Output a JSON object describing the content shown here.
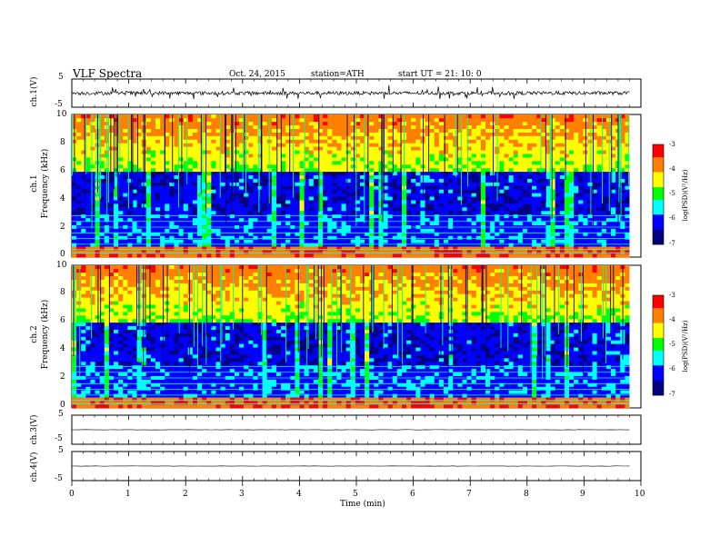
{
  "header": {
    "title": "VLF  Spectra",
    "date": "Oct. 24, 2015",
    "station": "station=ATH",
    "start": "start  UT  =    21: 10: 0"
  },
  "chart_data": [
    {
      "type": "line",
      "name_label": "ch.1(V)",
      "ylim": [
        -5,
        5
      ],
      "yticks": [
        "5",
        "-5"
      ],
      "description_values": {
        "baseline": 0.0,
        "typical_amplitude": 0.8,
        "spike_max": 2.5
      }
    },
    {
      "type": "heatmap",
      "ylabel_channel": "ch.1",
      "ylabel": "Frequency  (kHz)",
      "ylim": [
        0,
        10
      ],
      "yticks": [
        "0",
        "2",
        "4",
        "6",
        "8",
        "10"
      ],
      "xlim": [
        0,
        10
      ],
      "data_end_min": 9.8,
      "colorbar": {
        "label": "log(PSD)(V²/Hz)",
        "ticks": [
          "-3",
          "-4",
          "-5",
          "-6",
          "-7"
        ],
        "range": [
          -7,
          -3
        ]
      }
    },
    {
      "type": "heatmap",
      "ylabel_channel": "ch.2",
      "ylabel": "Frequency  (kHz)",
      "ylim": [
        0,
        10
      ],
      "yticks": [
        "0",
        "2",
        "4",
        "6",
        "8",
        "10"
      ],
      "xlim": [
        0,
        10
      ],
      "data_end_min": 9.8,
      "colorbar": {
        "label": "log(PSD)(V²/Hz)",
        "ticks": [
          "-3",
          "-4",
          "-5",
          "-6",
          "-7"
        ],
        "range": [
          -7,
          -3
        ]
      }
    },
    {
      "type": "line",
      "name_label": "ch.3(V)",
      "ylim": [
        -5,
        5
      ],
      "yticks": [
        "5",
        "-5"
      ],
      "description_values": {
        "baseline": 0.0
      }
    },
    {
      "type": "line",
      "name_label": "ch.4(V)",
      "ylim": [
        -5,
        5
      ],
      "yticks": [
        "5",
        "-5"
      ],
      "description_values": {
        "baseline": 0.0
      }
    }
  ],
  "xaxis": {
    "label": "Time  (min)",
    "ticks": [
      "0",
      "1",
      "2",
      "3",
      "4",
      "5",
      "6",
      "7",
      "8",
      "9",
      "10"
    ]
  },
  "colors": {
    "colormap": [
      "#000080",
      "#0000ff",
      "#00ffff",
      "#00ff00",
      "#ffff00",
      "#ff8000",
      "#ff0000",
      "#ffffff"
    ]
  }
}
